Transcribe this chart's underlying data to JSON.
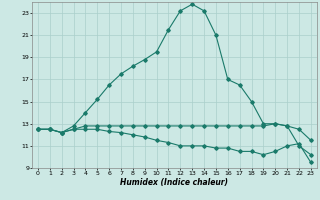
{
  "xlabel": "Humidex (Indice chaleur)",
  "xlim": [
    -0.5,
    23.5
  ],
  "ylim": [
    9,
    24
  ],
  "yticks": [
    9,
    11,
    13,
    15,
    17,
    19,
    21,
    23
  ],
  "xticks": [
    0,
    1,
    2,
    3,
    4,
    5,
    6,
    7,
    8,
    9,
    10,
    11,
    12,
    13,
    14,
    15,
    16,
    17,
    18,
    19,
    20,
    21,
    22,
    23
  ],
  "line_color": "#1a7a6a",
  "bg_color": "#cce8e4",
  "grid_color": "#aacfcb",
  "curve1_x": [
    0,
    1,
    2,
    3,
    4,
    5,
    6,
    7,
    8,
    9,
    10,
    11,
    12,
    13,
    14,
    15,
    16,
    17,
    18,
    19,
    20,
    21,
    22,
    23
  ],
  "curve1_y": [
    12.5,
    12.5,
    12.2,
    12.8,
    14.0,
    15.2,
    16.5,
    17.5,
    18.2,
    18.8,
    19.5,
    21.5,
    23.2,
    23.8,
    23.2,
    21.0,
    17.0,
    16.5,
    15.0,
    13.0,
    13.0,
    12.8,
    11.0,
    10.2
  ],
  "curve2_x": [
    0,
    1,
    2,
    3,
    4,
    5,
    6,
    7,
    8,
    9,
    10,
    11,
    12,
    13,
    14,
    15,
    16,
    17,
    18,
    19,
    20,
    21,
    22,
    23
  ],
  "curve2_y": [
    12.5,
    12.5,
    12.2,
    12.5,
    12.8,
    12.8,
    12.8,
    12.8,
    12.8,
    12.8,
    12.8,
    12.8,
    12.8,
    12.8,
    12.8,
    12.8,
    12.8,
    12.8,
    12.8,
    12.8,
    13.0,
    12.8,
    12.5,
    11.5
  ],
  "curve3_x": [
    0,
    1,
    2,
    3,
    4,
    5,
    6,
    7,
    8,
    9,
    10,
    11,
    12,
    13,
    14,
    15,
    16,
    17,
    18,
    19,
    20,
    21,
    22,
    23
  ],
  "curve3_y": [
    12.5,
    12.5,
    12.2,
    12.5,
    12.5,
    12.5,
    12.3,
    12.2,
    12.0,
    11.8,
    11.5,
    11.3,
    11.0,
    11.0,
    11.0,
    10.8,
    10.8,
    10.5,
    10.5,
    10.2,
    10.5,
    11.0,
    11.2,
    9.5
  ]
}
